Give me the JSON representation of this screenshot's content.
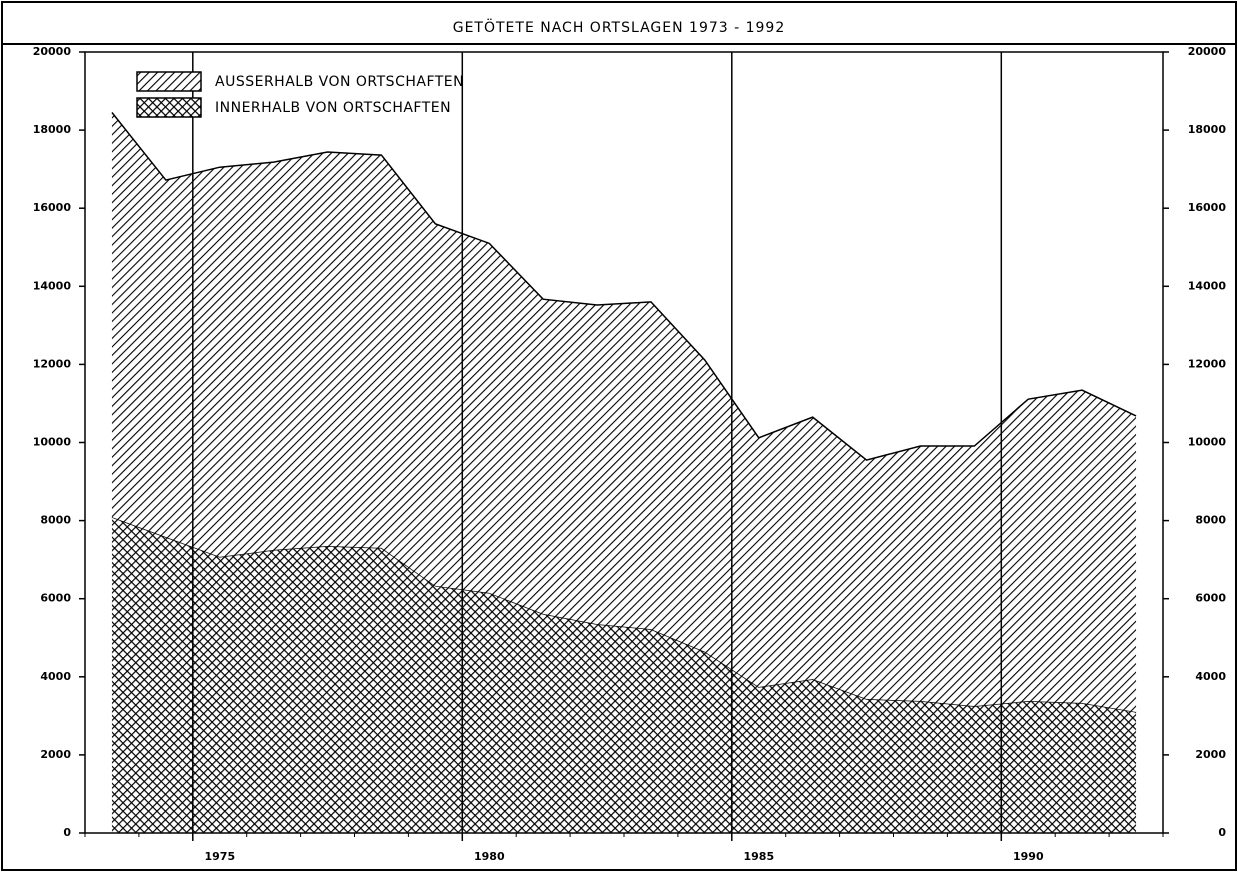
{
  "chart_data": {
    "type": "area",
    "stacked": true,
    "title": "GETÖTETE NACH ORTSLAGEN 1973 - 1992",
    "x": [
      1973.5,
      1974.5,
      1975.5,
      1976.5,
      1977.5,
      1978.5,
      1979.5,
      1980.5,
      1981.5,
      1982.5,
      1983.5,
      1984.5,
      1985.5,
      1986.5,
      1987.5,
      1988.5,
      1989.5,
      1990.5,
      1991.5,
      1992.5
    ],
    "series": [
      {
        "name": "INNERHALB VON ORTSCHAFTEN",
        "color": "#000000",
        "pattern": "crosshatch",
        "values": [
          8090,
          7580,
          7070,
          7250,
          7350,
          7300,
          6330,
          6150,
          5610,
          5350,
          5220,
          4640,
          3740,
          3940,
          3430,
          3380,
          3250,
          3380,
          3330,
          3100
        ]
      },
      {
        "name": "AUSSERHALB VON ORTSCHAFTEN",
        "color": "#000000",
        "pattern": "hatch",
        "values": [
          10360,
          9140,
          9980,
          9930,
          10090,
          10060,
          9270,
          8950,
          8060,
          8170,
          8380,
          7470,
          6380,
          6710,
          6120,
          6530,
          6660,
          7730,
          8010,
          7580
        ]
      }
    ],
    "xlim": [
      1973,
      1993
    ],
    "xticks": [
      1975,
      1980,
      1985,
      1990
    ],
    "ylim": [
      0,
      20000
    ],
    "yticks": [
      0,
      2000,
      4000,
      6000,
      8000,
      10000,
      12000,
      14000,
      16000,
      18000,
      20000
    ],
    "grid": "x",
    "legend": "top-left"
  }
}
